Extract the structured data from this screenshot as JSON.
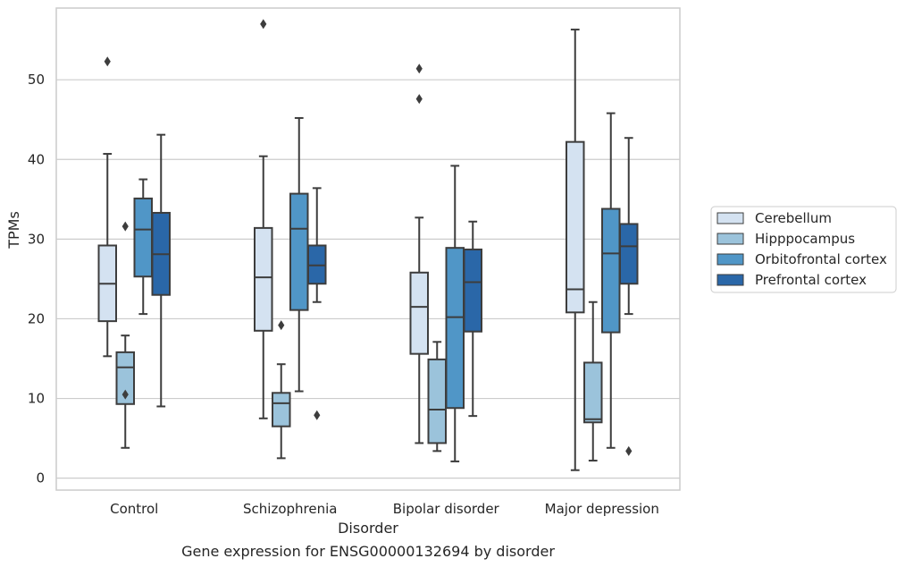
{
  "chart_data": {
    "type": "box",
    "title": "",
    "caption": "Gene expression for ENSG00000132694 by disorder",
    "xlabel": "Disorder",
    "ylabel": "TPMs",
    "ylim": [
      -1.5,
      59
    ],
    "yticks": [
      0,
      10,
      20,
      30,
      40,
      50
    ],
    "grid": "horizontal",
    "legend_position": "right",
    "categories": [
      "Control",
      "Schizophrenia",
      "Bipolar disorder",
      "Major depression"
    ],
    "series": [
      {
        "name": "Cerebellum",
        "color": "#d4e2f1",
        "boxes": [
          {
            "whisker_low": 15.3,
            "q1": 19.7,
            "median": 24.4,
            "q3": 29.2,
            "whisker_high": 40.7,
            "outliers": [
              52.3
            ]
          },
          {
            "whisker_low": 7.5,
            "q1": 18.5,
            "median": 25.2,
            "q3": 31.4,
            "whisker_high": 40.4,
            "outliers": [
              57.0
            ]
          },
          {
            "whisker_low": 4.4,
            "q1": 15.6,
            "median": 21.5,
            "q3": 25.8,
            "whisker_high": 32.7,
            "outliers": [
              47.6,
              51.4
            ]
          },
          {
            "whisker_low": 1.0,
            "q1": 20.8,
            "median": 23.7,
            "q3": 42.2,
            "whisker_high": 56.3,
            "outliers": []
          }
        ]
      },
      {
        "name": "Hipppocampus",
        "color": "#9bc3db",
        "boxes": [
          {
            "whisker_low": 3.8,
            "q1": 9.3,
            "median": 13.9,
            "q3": 15.8,
            "whisker_high": 17.9,
            "outliers": [
              10.5,
              31.6
            ]
          },
          {
            "whisker_low": 2.5,
            "q1": 6.5,
            "median": 9.4,
            "q3": 10.7,
            "whisker_high": 14.3,
            "outliers": [
              19.2
            ]
          },
          {
            "whisker_low": 3.4,
            "q1": 4.4,
            "median": 8.6,
            "q3": 14.9,
            "whisker_high": 17.1,
            "outliers": []
          },
          {
            "whisker_low": 2.2,
            "q1": 7.0,
            "median": 7.4,
            "q3": 14.5,
            "whisker_high": 22.1,
            "outliers": []
          }
        ]
      },
      {
        "name": "Orbitofrontal cortex",
        "color": "#5096c7",
        "boxes": [
          {
            "whisker_low": 20.6,
            "q1": 25.3,
            "median": 31.2,
            "q3": 35.1,
            "whisker_high": 37.5,
            "outliers": []
          },
          {
            "whisker_low": 10.9,
            "q1": 21.1,
            "median": 31.3,
            "q3": 35.7,
            "whisker_high": 45.2,
            "outliers": []
          },
          {
            "whisker_low": 2.1,
            "q1": 8.8,
            "median": 20.2,
            "q3": 28.9,
            "whisker_high": 39.2,
            "outliers": []
          },
          {
            "whisker_low": 3.8,
            "q1": 18.3,
            "median": 28.2,
            "q3": 33.8,
            "whisker_high": 45.8,
            "outliers": []
          }
        ]
      },
      {
        "name": "Prefrontal cortex",
        "color": "#2a67a8",
        "boxes": [
          {
            "whisker_low": 9.0,
            "q1": 23.0,
            "median": 28.1,
            "q3": 33.3,
            "whisker_high": 43.1,
            "outliers": []
          },
          {
            "whisker_low": 22.1,
            "q1": 24.4,
            "median": 26.7,
            "q3": 29.2,
            "whisker_high": 36.4,
            "outliers": [
              7.9
            ]
          },
          {
            "whisker_low": 7.8,
            "q1": 18.4,
            "median": 24.6,
            "q3": 28.7,
            "whisker_high": 32.2,
            "outliers": []
          },
          {
            "whisker_low": 20.6,
            "q1": 24.4,
            "median": 29.1,
            "q3": 31.9,
            "whisker_high": 42.7,
            "outliers": [
              3.4
            ]
          }
        ]
      }
    ]
  }
}
